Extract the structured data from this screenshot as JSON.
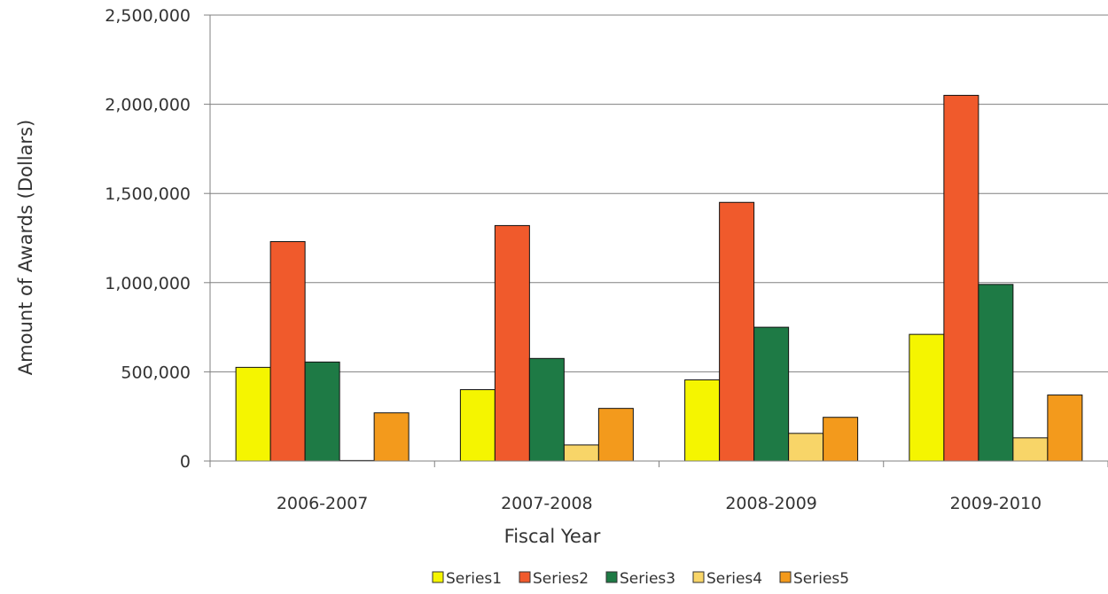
{
  "chart_data": {
    "type": "bar",
    "title": "",
    "xlabel": "Fiscal Year",
    "ylabel": "Amount of Awards (Dollars)",
    "categories": [
      "2006-2007",
      "2007-2008",
      "2008-2009",
      "2009-2010"
    ],
    "ylim": [
      0,
      2500000
    ],
    "yticks": [
      0,
      500000,
      1000000,
      1500000,
      2000000,
      2500000
    ],
    "ytick_labels": [
      "0",
      "500,000",
      "1,000,000",
      "1,500,000",
      "2,000,000",
      "2,500,000"
    ],
    "grid": true,
    "legend_position": "bottom",
    "series": [
      {
        "name": "Series1",
        "color": "#f5f500",
        "values": [
          525000,
          400000,
          455000,
          710000
        ]
      },
      {
        "name": "Series2",
        "color": "#f05a2c",
        "values": [
          1230000,
          1320000,
          1450000,
          2050000
        ]
      },
      {
        "name": "Series3",
        "color": "#1e7a45",
        "values": [
          555000,
          575000,
          750000,
          990000
        ]
      },
      {
        "name": "Series4",
        "color": "#f8d568",
        "values": [
          3000,
          90000,
          155000,
          130000
        ]
      },
      {
        "name": "Series5",
        "color": "#f39a1c",
        "values": [
          270000,
          295000,
          245000,
          370000
        ]
      }
    ]
  }
}
